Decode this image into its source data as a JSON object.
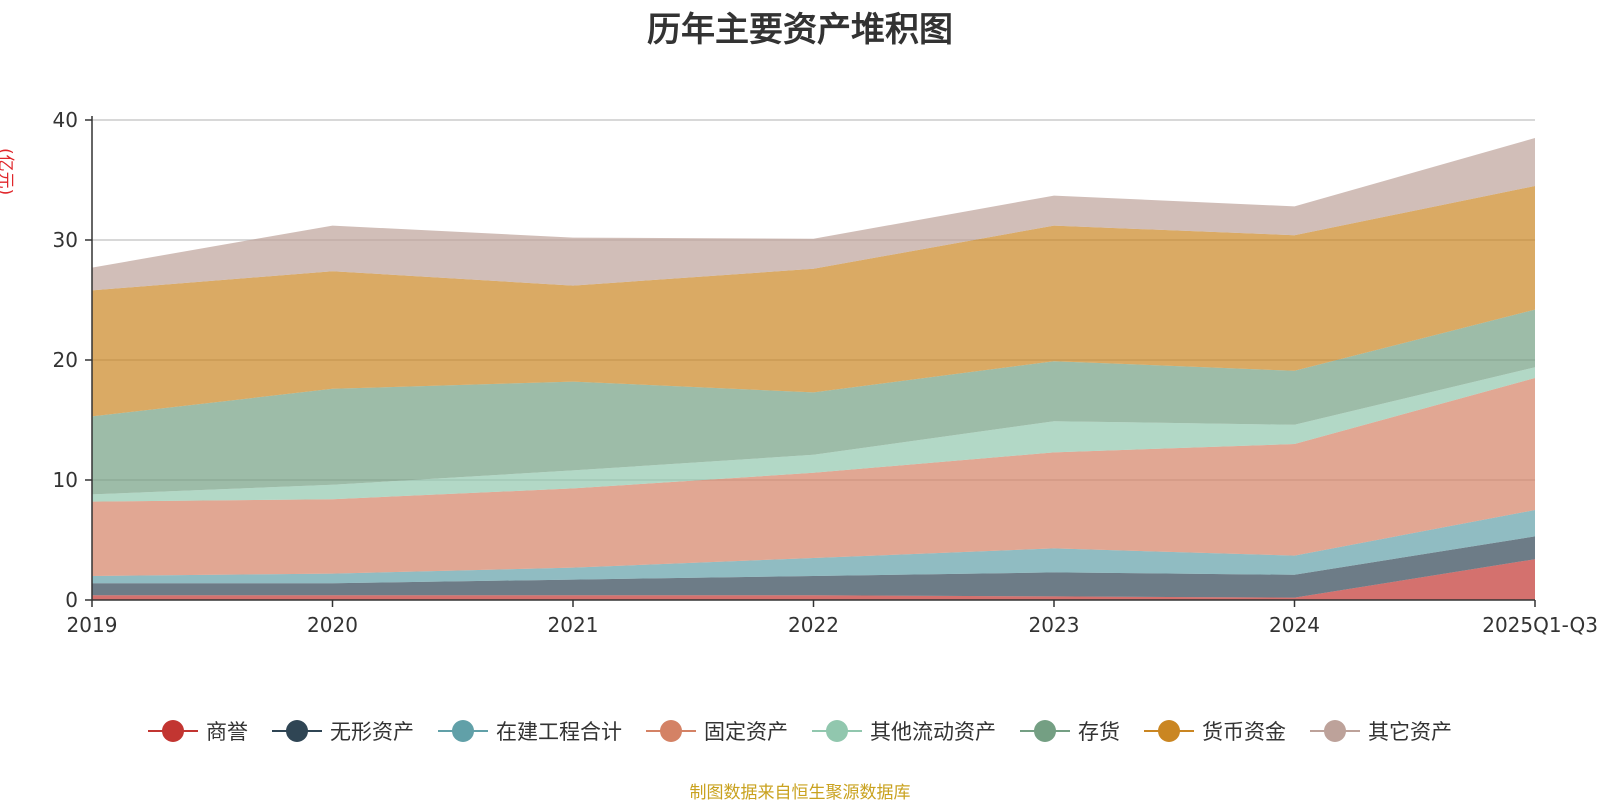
{
  "chart_data": {
    "type": "area",
    "stacked": true,
    "title": "历年主要资产堆积图",
    "ylabel": "(亿元)",
    "xlabel": "",
    "ylim": [
      0,
      40
    ],
    "yticks": [
      0,
      10,
      20,
      30,
      40
    ],
    "categories": [
      "2019",
      "2020",
      "2021",
      "2022",
      "2023",
      "2024",
      "2025Q1-Q3"
    ],
    "series": [
      {
        "name": "商誉",
        "color": "#c23531",
        "values": [
          0.4,
          0.4,
          0.4,
          0.4,
          0.3,
          0.2,
          3.4
        ]
      },
      {
        "name": "无形资产",
        "color": "#2f4554",
        "values": [
          1.0,
          1.0,
          1.3,
          1.6,
          2.0,
          1.9,
          1.9
        ]
      },
      {
        "name": "在建工程合计",
        "color": "#61a0a8",
        "values": [
          0.6,
          0.8,
          1.0,
          1.5,
          2.0,
          1.6,
          2.2
        ]
      },
      {
        "name": "固定资产",
        "color": "#d48265",
        "values": [
          6.2,
          6.2,
          6.6,
          7.1,
          8.0,
          9.3,
          11.0
        ]
      },
      {
        "name": "其他流动资产",
        "color": "#91c7ae",
        "values": [
          0.6,
          1.2,
          1.5,
          1.5,
          2.6,
          1.6,
          0.9
        ]
      },
      {
        "name": "存货",
        "color": "#749f83",
        "values": [
          6.5,
          8.0,
          7.4,
          5.2,
          5.0,
          4.5,
          4.8
        ]
      },
      {
        "name": "货币资金",
        "color": "#ca8622",
        "values": [
          10.5,
          9.8,
          8.0,
          10.3,
          11.3,
          11.3,
          10.3
        ]
      },
      {
        "name": "其它资产",
        "color": "#bda29a",
        "values": [
          1.9,
          3.8,
          4.0,
          2.5,
          2.5,
          2.4,
          4.0
        ]
      }
    ]
  },
  "source_note": "制图数据来自恒生聚源数据库"
}
